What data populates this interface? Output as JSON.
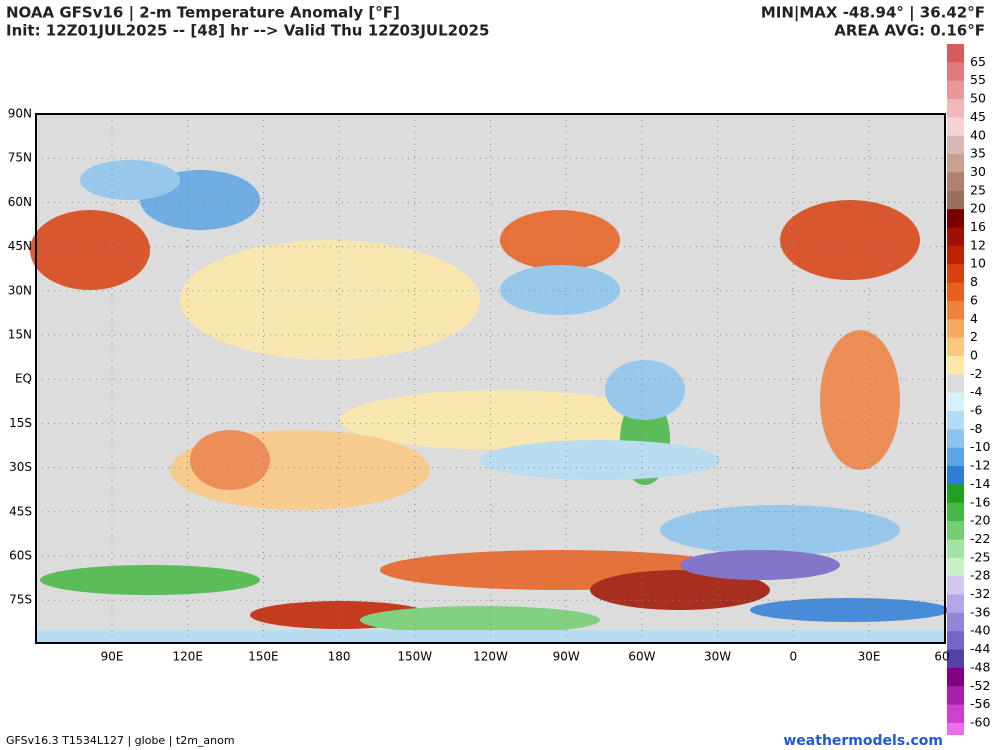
{
  "header": {
    "title": "NOAA GFSv16 | 2-m Temperature Anomaly [°F]",
    "subtitle": "Init: 12Z01JUL2025 -- [48] hr --> Valid Thu 12Z03JUL2025",
    "minmax": "MIN|MAX -48.94° | 36.42°F",
    "area_avg": "AREA AVG: 0.16°F"
  },
  "map": {
    "lat_labels": [
      "90N",
      "75N",
      "60N",
      "45N",
      "30N",
      "15N",
      "EQ",
      "15S",
      "30S",
      "45S",
      "60S",
      "75S"
    ],
    "lon_labels": [
      "90E",
      "120E",
      "150E",
      "180",
      "150W",
      "120W",
      "90W",
      "60W",
      "30W",
      "0",
      "30E",
      "60"
    ]
  },
  "colorbar": {
    "labels": [
      "65",
      "55",
      "50",
      "45",
      "40",
      "35",
      "30",
      "25",
      "20",
      "16",
      "12",
      "10",
      "8",
      "6",
      "4",
      "2",
      "0",
      "-2",
      "-4",
      "-6",
      "-8",
      "-10",
      "-12",
      "-14",
      "-16",
      "-20",
      "-22",
      "-25",
      "-28",
      "-32",
      "-36",
      "-40",
      "-44",
      "-48",
      "-52",
      "-56",
      "-60"
    ],
    "colors": [
      "#d65c5c",
      "#e07a7a",
      "#e89898",
      "#f0b8b8",
      "#f5d3d0",
      "#d8b8b0",
      "#c8a090",
      "#b08070",
      "#987060",
      "#7a0000",
      "#a01000",
      "#c02000",
      "#d84010",
      "#e86020",
      "#f08040",
      "#f8a860",
      "#fcc880",
      "#fde8a8",
      "#dcdcdc",
      "#d8f0fa",
      "#b4dcf4",
      "#8cc4ee",
      "#5ca4e4",
      "#2f7ed6",
      "#20a020",
      "#44b844",
      "#72d072",
      "#a2e2a2",
      "#c8f0c8",
      "#d4c6f2",
      "#b4a4e8",
      "#9484da",
      "#7464c8",
      "#5440a8",
      "#800080",
      "#a820a8",
      "#d040d0",
      "#e870e8",
      "#f4a8f0",
      "#d8c0d8"
    ]
  },
  "footer": {
    "left": "GFSv16.3 T1534L127 | globe | t2m_anom",
    "right": "weathermodels.com"
  }
}
